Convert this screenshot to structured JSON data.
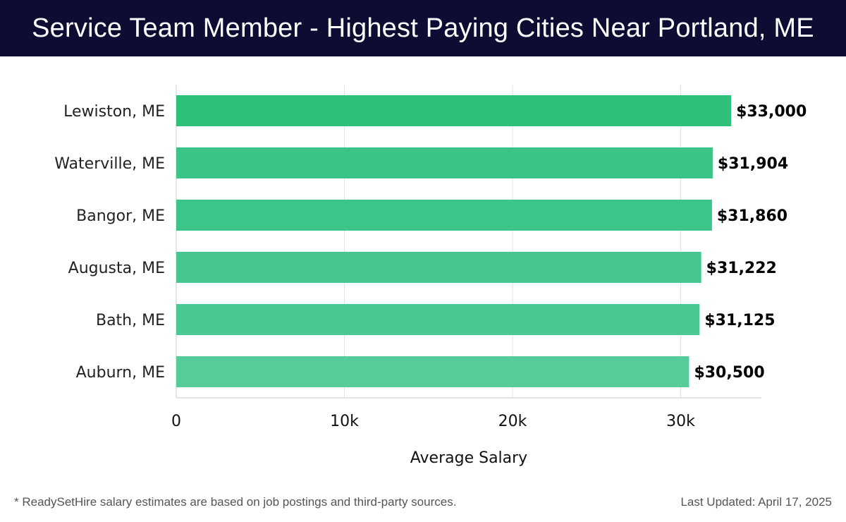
{
  "header": {
    "title": "Service Team Member - Highest Paying Cities Near Portland, ME"
  },
  "footer": {
    "note": "* ReadySetHire salary estimates are based on job postings and third-party sources.",
    "updated": "Last Updated: April 17, 2025"
  },
  "chart_data": {
    "type": "bar",
    "orientation": "horizontal",
    "title": "Service Team Member - Highest Paying Cities Near Portland, ME",
    "categories": [
      "Lewiston, ME",
      "Waterville, ME",
      "Bangor, ME",
      "Augusta, ME",
      "Bath, ME",
      "Auburn, ME"
    ],
    "values": [
      33000,
      31904,
      31860,
      31222,
      31125,
      30500
    ],
    "value_labels": [
      "$33,000",
      "$31,904",
      "$31,860",
      "$31,222",
      "$31,125",
      "$30,500"
    ],
    "xlabel": "Average Salary",
    "ylabel": "",
    "xlim": [
      0,
      34800
    ],
    "xticks": [
      0,
      10000,
      20000,
      30000
    ],
    "xtick_labels": [
      "0",
      "10k",
      "20k",
      "30k"
    ],
    "grid": "vertical",
    "colors": [
      "#2ebf79",
      "#3cc487",
      "#3dc488",
      "#47c78f",
      "#4ac891",
      "#56cc98"
    ]
  }
}
